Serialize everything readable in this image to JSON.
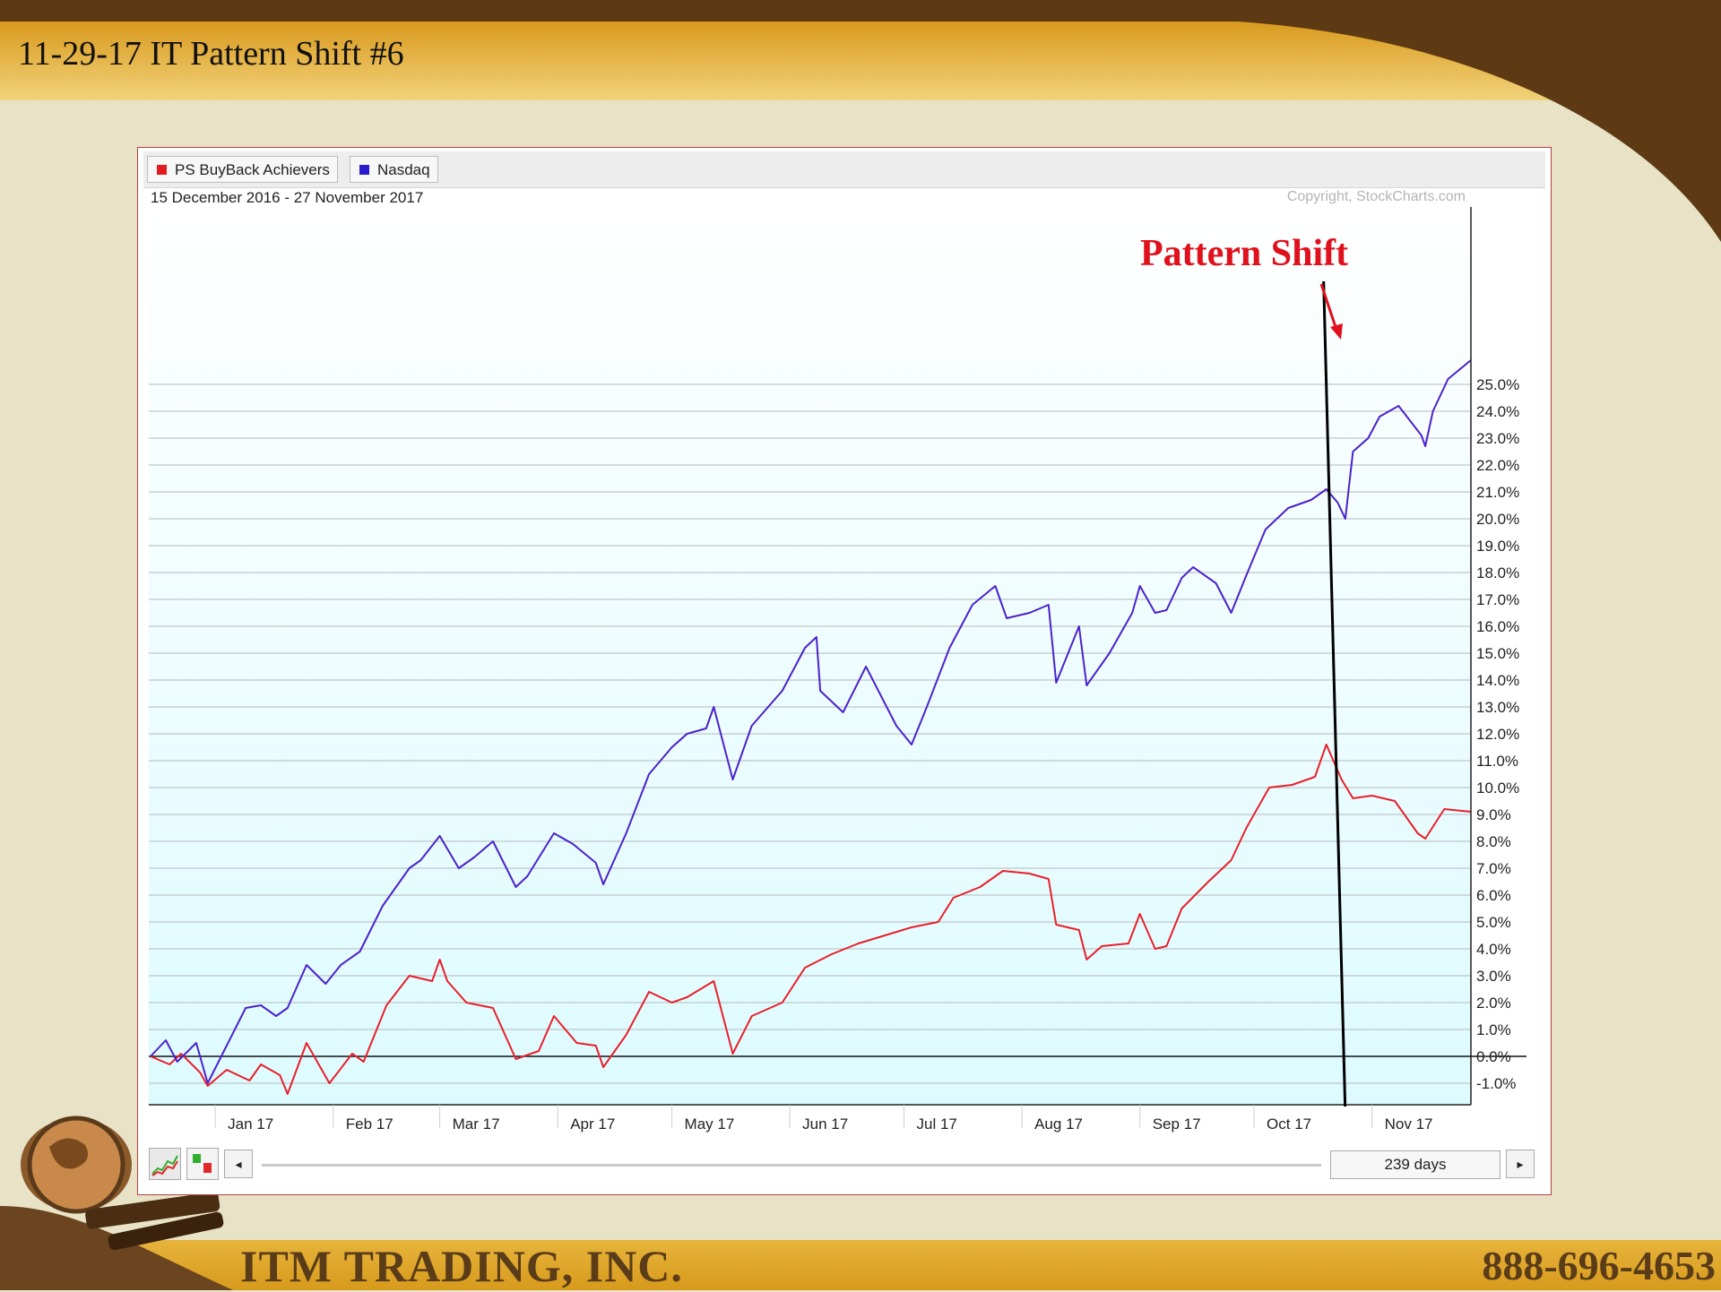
{
  "slide": {
    "title": "11-29-17 IT Pattern Shift #6",
    "company": "ITM TRADING, INC.",
    "phone": "888-696-4653"
  },
  "colors": {
    "header_brown": "#5e3a14",
    "header_gold": "#e2a62a",
    "nasdaq": "#4b22cc",
    "buyback": "#e8202a",
    "annotation": "#e0101c"
  },
  "chart_toolbar": {
    "legend": [
      {
        "label": "PS BuyBack Achievers",
        "color": "#e21b22"
      },
      {
        "label": "Nasdaq",
        "color": "#2a1bcc"
      }
    ],
    "date_range": "15 December 2016 - 27 November 2017",
    "copyright": "Copyright, StockCharts.com",
    "range_label": "239 days",
    "left_arrow": "◂",
    "right_arrow": "▸",
    "icons": [
      "line-chart-icon",
      "candlestick-icon"
    ]
  },
  "chart_data": {
    "type": "line",
    "title": "",
    "xlabel": "",
    "ylabel": "",
    "y_unit": "%",
    "ylim": [
      -1.5,
      26.0
    ],
    "y_ticks": [
      "25.0%",
      "24.0%",
      "23.0%",
      "22.0%",
      "21.0%",
      "20.0%",
      "19.0%",
      "18.0%",
      "17.0%",
      "16.0%",
      "15.0%",
      "14.0%",
      "13.0%",
      "12.0%",
      "11.0%",
      "10.0%",
      "9.0%",
      "8.0%",
      "7.0%",
      "6.0%",
      "5.0%",
      "4.0%",
      "3.0%",
      "2.0%",
      "1.0%",
      "0.0%",
      "-1.0%"
    ],
    "x_ticks": [
      "Jan 17",
      "Feb 17",
      "Mar 17",
      "Apr 17",
      "May 17",
      "Jun 17",
      "Jul 17",
      "Aug 17",
      "Sep 17",
      "Oct 17",
      "Nov 17"
    ],
    "grid": true,
    "legend_position": "top-left",
    "annotation": {
      "text": "Pattern Shift",
      "x": "2017-10-24"
    },
    "series": [
      {
        "name": "Nasdaq",
        "color": "#4b22cc",
        "points": [
          [
            "2016-12-15",
            0.0
          ],
          [
            "2016-12-19",
            0.6
          ],
          [
            "2016-12-22",
            -0.2
          ],
          [
            "2016-12-27",
            0.5
          ],
          [
            "2016-12-30",
            -1.0
          ],
          [
            "2017-01-04",
            0.4
          ],
          [
            "2017-01-09",
            1.8
          ],
          [
            "2017-01-13",
            1.9
          ],
          [
            "2017-01-17",
            1.5
          ],
          [
            "2017-01-20",
            1.8
          ],
          [
            "2017-01-25",
            3.4
          ],
          [
            "2017-01-30",
            2.7
          ],
          [
            "2017-02-03",
            3.4
          ],
          [
            "2017-02-08",
            3.9
          ],
          [
            "2017-02-14",
            5.6
          ],
          [
            "2017-02-21",
            7.0
          ],
          [
            "2017-02-24",
            7.3
          ],
          [
            "2017-03-01",
            8.2
          ],
          [
            "2017-03-06",
            7.0
          ],
          [
            "2017-03-10",
            7.4
          ],
          [
            "2017-03-15",
            8.0
          ],
          [
            "2017-03-21",
            6.3
          ],
          [
            "2017-03-24",
            6.7
          ],
          [
            "2017-03-31",
            8.3
          ],
          [
            "2017-04-05",
            7.9
          ],
          [
            "2017-04-11",
            7.2
          ],
          [
            "2017-04-13",
            6.4
          ],
          [
            "2017-04-19",
            8.3
          ],
          [
            "2017-04-25",
            10.5
          ],
          [
            "2017-05-01",
            11.5
          ],
          [
            "2017-05-05",
            12.0
          ],
          [
            "2017-05-10",
            12.2
          ],
          [
            "2017-05-12",
            13.0
          ],
          [
            "2017-05-17",
            10.3
          ],
          [
            "2017-05-22",
            12.3
          ],
          [
            "2017-05-30",
            13.6
          ],
          [
            "2017-06-05",
            15.2
          ],
          [
            "2017-06-08",
            15.6
          ],
          [
            "2017-06-09",
            13.6
          ],
          [
            "2017-06-15",
            12.8
          ],
          [
            "2017-06-21",
            14.5
          ],
          [
            "2017-06-29",
            12.3
          ],
          [
            "2017-07-03",
            11.6
          ],
          [
            "2017-07-07",
            13.0
          ],
          [
            "2017-07-13",
            15.2
          ],
          [
            "2017-07-19",
            16.8
          ],
          [
            "2017-07-25",
            17.5
          ],
          [
            "2017-07-28",
            16.3
          ],
          [
            "2017-08-03",
            16.5
          ],
          [
            "2017-08-08",
            16.8
          ],
          [
            "2017-08-10",
            13.9
          ],
          [
            "2017-08-16",
            16.0
          ],
          [
            "2017-08-18",
            13.8
          ],
          [
            "2017-08-24",
            15.0
          ],
          [
            "2017-08-30",
            16.5
          ],
          [
            "2017-09-01",
            17.5
          ],
          [
            "2017-09-05",
            16.5
          ],
          [
            "2017-09-08",
            16.6
          ],
          [
            "2017-09-12",
            17.8
          ],
          [
            "2017-09-15",
            18.2
          ],
          [
            "2017-09-21",
            17.6
          ],
          [
            "2017-09-25",
            16.5
          ],
          [
            "2017-09-29",
            17.9
          ],
          [
            "2017-10-04",
            19.6
          ],
          [
            "2017-10-10",
            20.4
          ],
          [
            "2017-10-16",
            20.7
          ],
          [
            "2017-10-20",
            21.1
          ],
          [
            "2017-10-23",
            20.6
          ],
          [
            "2017-10-25",
            20.0
          ],
          [
            "2017-10-27",
            22.5
          ],
          [
            "2017-10-31",
            23.0
          ],
          [
            "2017-11-03",
            23.8
          ],
          [
            "2017-11-08",
            24.2
          ],
          [
            "2017-11-14",
            23.1
          ],
          [
            "2017-11-15",
            22.7
          ],
          [
            "2017-11-17",
            24.0
          ],
          [
            "2017-11-21",
            25.2
          ],
          [
            "2017-11-27",
            25.9
          ]
        ]
      },
      {
        "name": "PS BuyBack Achievers",
        "color": "#e8202a",
        "points": [
          [
            "2016-12-15",
            0.0
          ],
          [
            "2016-12-20",
            -0.3
          ],
          [
            "2016-12-23",
            0.1
          ],
          [
            "2016-12-28",
            -0.6
          ],
          [
            "2016-12-30",
            -1.1
          ],
          [
            "2017-01-04",
            -0.5
          ],
          [
            "2017-01-10",
            -0.9
          ],
          [
            "2017-01-13",
            -0.3
          ],
          [
            "2017-01-18",
            -0.7
          ],
          [
            "2017-01-20",
            -1.4
          ],
          [
            "2017-01-25",
            0.5
          ],
          [
            "2017-01-31",
            -1.0
          ],
          [
            "2017-02-06",
            0.1
          ],
          [
            "2017-02-09",
            -0.2
          ],
          [
            "2017-02-15",
            1.9
          ],
          [
            "2017-02-21",
            3.0
          ],
          [
            "2017-02-27",
            2.8
          ],
          [
            "2017-03-01",
            3.6
          ],
          [
            "2017-03-03",
            2.8
          ],
          [
            "2017-03-08",
            2.0
          ],
          [
            "2017-03-15",
            1.8
          ],
          [
            "2017-03-21",
            -0.1
          ],
          [
            "2017-03-27",
            0.2
          ],
          [
            "2017-03-31",
            1.5
          ],
          [
            "2017-04-06",
            0.5
          ],
          [
            "2017-04-11",
            0.4
          ],
          [
            "2017-04-13",
            -0.4
          ],
          [
            "2017-04-19",
            0.8
          ],
          [
            "2017-04-25",
            2.4
          ],
          [
            "2017-05-01",
            2.0
          ],
          [
            "2017-05-05",
            2.2
          ],
          [
            "2017-05-12",
            2.8
          ],
          [
            "2017-05-17",
            0.1
          ],
          [
            "2017-05-22",
            1.5
          ],
          [
            "2017-05-30",
            2.0
          ],
          [
            "2017-06-05",
            3.3
          ],
          [
            "2017-06-12",
            3.8
          ],
          [
            "2017-06-19",
            4.2
          ],
          [
            "2017-06-26",
            4.5
          ],
          [
            "2017-07-03",
            4.8
          ],
          [
            "2017-07-10",
            5.0
          ],
          [
            "2017-07-14",
            5.9
          ],
          [
            "2017-07-21",
            6.3
          ],
          [
            "2017-07-27",
            6.9
          ],
          [
            "2017-08-03",
            6.8
          ],
          [
            "2017-08-08",
            6.6
          ],
          [
            "2017-08-10",
            4.9
          ],
          [
            "2017-08-16",
            4.7
          ],
          [
            "2017-08-18",
            3.6
          ],
          [
            "2017-08-22",
            4.1
          ],
          [
            "2017-08-29",
            4.2
          ],
          [
            "2017-09-01",
            5.3
          ],
          [
            "2017-09-05",
            4.0
          ],
          [
            "2017-09-08",
            4.1
          ],
          [
            "2017-09-12",
            5.5
          ],
          [
            "2017-09-19",
            6.5
          ],
          [
            "2017-09-25",
            7.3
          ],
          [
            "2017-09-29",
            8.5
          ],
          [
            "2017-10-05",
            10.0
          ],
          [
            "2017-10-11",
            10.1
          ],
          [
            "2017-10-17",
            10.4
          ],
          [
            "2017-10-20",
            11.6
          ],
          [
            "2017-10-24",
            10.3
          ],
          [
            "2017-10-27",
            9.6
          ],
          [
            "2017-11-01",
            9.7
          ],
          [
            "2017-11-07",
            9.5
          ],
          [
            "2017-11-13",
            8.3
          ],
          [
            "2017-11-15",
            8.1
          ],
          [
            "2017-11-20",
            9.2
          ],
          [
            "2017-11-27",
            9.1
          ]
        ]
      }
    ]
  }
}
